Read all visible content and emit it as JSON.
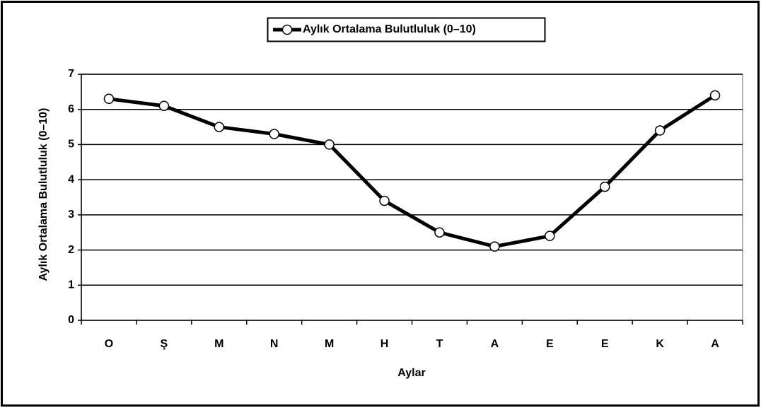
{
  "chart_data": {
    "type": "line",
    "legend_title": "Aylık Ortalama Bulutluluk (0–10)",
    "x_label": "Aylar",
    "y_label": "Aylık Ortalama Bulutluluk (0–10)",
    "categories": [
      "O",
      "Ş",
      "M",
      "N",
      "M",
      "H",
      "T",
      "A",
      "E",
      "E",
      "K",
      "A"
    ],
    "series": [
      {
        "name": "Aylık Ortalama Bulutluluk (0–10)",
        "color": "#000000",
        "values": [
          6.3,
          6.1,
          5.5,
          5.3,
          5.0,
          3.4,
          2.5,
          2.1,
          2.4,
          3.8,
          5.4,
          6.4
        ]
      }
    ],
    "ylim": [
      0,
      7
    ],
    "yticks": [
      0,
      1,
      2,
      3,
      4,
      5,
      6,
      7
    ],
    "grid": true,
    "legend": "top"
  }
}
